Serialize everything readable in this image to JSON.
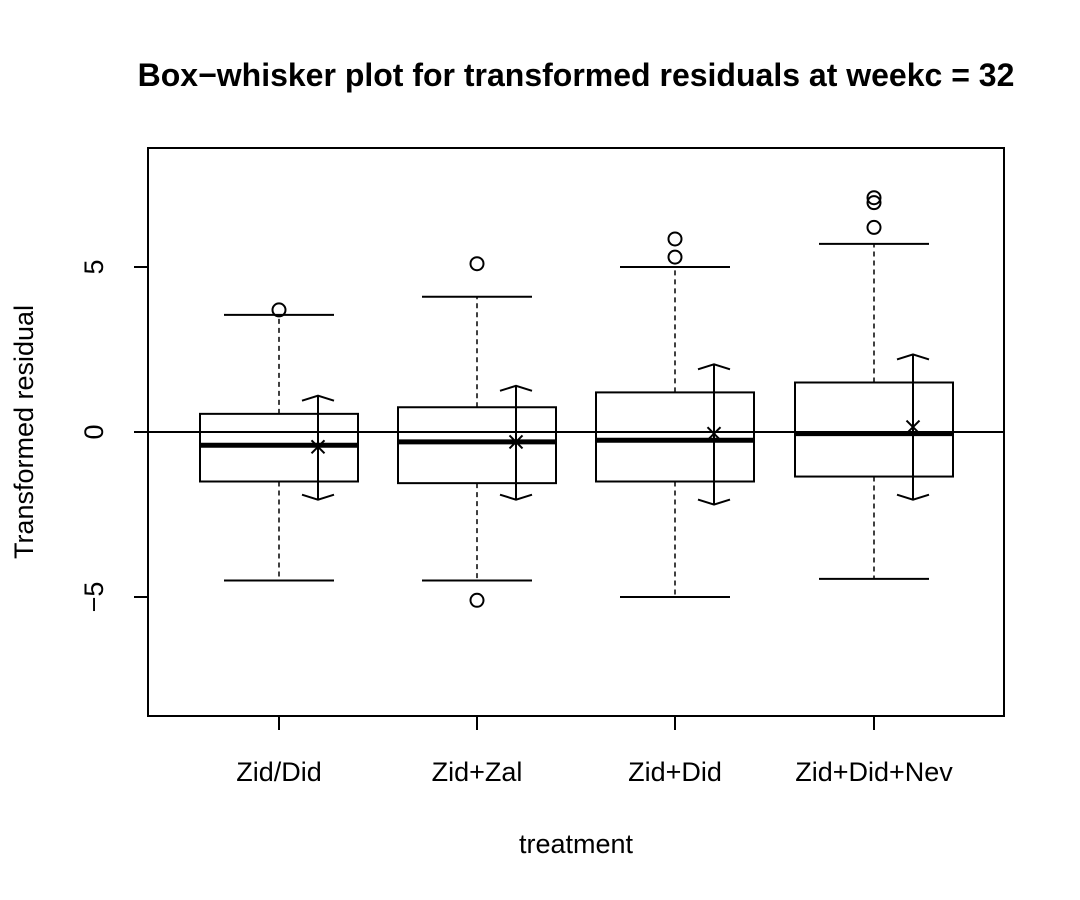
{
  "chart_data": {
    "type": "box",
    "title": "Box−whisker plot for transformed residuals at weekc = 32",
    "xlabel": "treatment",
    "ylabel": "Transformed residual",
    "ylim": [
      -8.6,
      8.6
    ],
    "y_ticks": [
      -5,
      0,
      5
    ],
    "y_tick_labels": [
      "−5",
      "0",
      "5"
    ],
    "reference_line_y": 0,
    "grid": false,
    "legend": "none",
    "categories": [
      "Zid/Did",
      "Zid+Zal",
      "Zid+Did",
      "Zid+Did+Nev"
    ],
    "boxes": [
      {
        "category": "Zid/Did",
        "whisker_low": -4.5,
        "q1": -1.5,
        "median": -0.4,
        "q3": 0.55,
        "whisker_high": 3.55,
        "outliers": [
          3.7
        ],
        "mean": -0.45,
        "ci_low": -2.05,
        "ci_high": 1.1
      },
      {
        "category": "Zid+Zal",
        "whisker_low": -4.5,
        "q1": -1.55,
        "median": -0.3,
        "q3": 0.75,
        "whisker_high": 4.1,
        "outliers": [
          5.1,
          -5.1
        ],
        "mean": -0.3,
        "ci_low": -2.05,
        "ci_high": 1.4
      },
      {
        "category": "Zid+Did",
        "whisker_low": -5.0,
        "q1": -1.5,
        "median": -0.25,
        "q3": 1.2,
        "whisker_high": 5.0,
        "outliers": [
          5.85,
          5.3
        ],
        "mean": -0.05,
        "ci_low": -2.2,
        "ci_high": 2.05
      },
      {
        "category": "Zid+Did+Nev",
        "whisker_low": -4.45,
        "q1": -1.35,
        "median": -0.05,
        "q3": 1.5,
        "whisker_high": 5.7,
        "outliers": [
          7.1,
          6.95,
          6.2
        ],
        "mean": 0.15,
        "ci_low": -2.05,
        "ci_high": 2.35
      }
    ]
  }
}
